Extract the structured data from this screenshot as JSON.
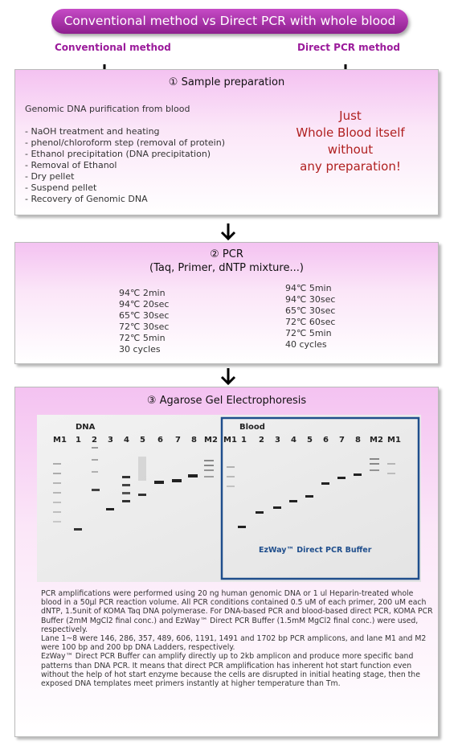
{
  "header": {
    "title": "Conventional method vs Direct PCR with whole blood"
  },
  "methods": {
    "conventional": "Conventional method",
    "direct": "Direct PCR method"
  },
  "step1": {
    "title": "① Sample preparation",
    "conv_heading": "Genomic DNA purification from blood",
    "conv_steps": [
      "- NaOH treatment and heating",
      "- phenol/chloroform step (removal of protein)",
      "- Ethanol precipitation (DNA precipitation)",
      "- Removal of Ethanol",
      "- Dry pellet",
      "- Suspend pellet",
      "- Recovery of Genomic DNA"
    ],
    "direct_lines": [
      "Just",
      "Whole Blood itself",
      "without",
      "any preparation!"
    ]
  },
  "step2": {
    "title": "② PCR",
    "subtitle": "(Taq, Primer, dNTP mixture...)",
    "conv_program": [
      "94℃ 2min",
      "94℃ 20sec",
      "65℃ 30sec",
      "72℃ 30sec",
      "72℃ 5min",
      "30 cycles"
    ],
    "direct_program": [
      "94℃ 5min",
      "94℃ 30sec",
      "65℃ 30sec",
      "72℃ 60sec",
      "72℃ 5min",
      "40 cycles"
    ]
  },
  "step3": {
    "title": "③ Agarose Gel Electrophoresis",
    "gel_dna_label": "DNA",
    "gel_blood_label": "Blood",
    "dna_lanes": [
      "M1",
      "1",
      "2",
      "3",
      "4",
      "5",
      "6",
      "7",
      "8",
      "M2"
    ],
    "blood_lanes": [
      "M1",
      "1",
      "2",
      "3",
      "4",
      "5",
      "6",
      "7",
      "8",
      "M2",
      "M1"
    ],
    "product_label": "EzWay™ Direct PCR Buffer",
    "description": [
      "PCR amplifications were performed using 20 ng human genomic DNA or 1 ul Heparin-treated whole blood in a 50µl PCR reaction volume. All PCR conditions contained 0.5 uM of each primer, 200 uM each dNTP, 1.5unit of KOMA Taq DNA polymerase. For DNA-based PCR and blood-based direct PCR, KOMA PCR Buffer (2mM MgCl2 final conc.) and EzWay™ Direct PCR Buffer (1.5mM MgCl2 final conc.) were used, respectively.",
      "Lane 1~8 were 146, 286, 357, 489, 606, 1191, 1491 and 1702 bp PCR amplicons, and lane M1 and M2 were 100 bp and 200 bp DNA Ladders, respectively.",
      "EzWay™ Direct PCR Buffer can amplify directly up to 2kb amplicon and produce more specific band patterns than DNA PCR. It means that direct PCR amplification has inherent hot start function even without the help of hot start enzyme because the cells are disrupted in initial heating stage, then the exposed DNA templates meet primers instantly at higher temperature than Tm."
    ]
  },
  "colors": {
    "title_bg": "#9b1f9b",
    "method_label": "#9b1b9b",
    "panel_top": "#f4c2f1",
    "accent_red": "#b02020",
    "blood_frame": "#1f4e8c"
  }
}
